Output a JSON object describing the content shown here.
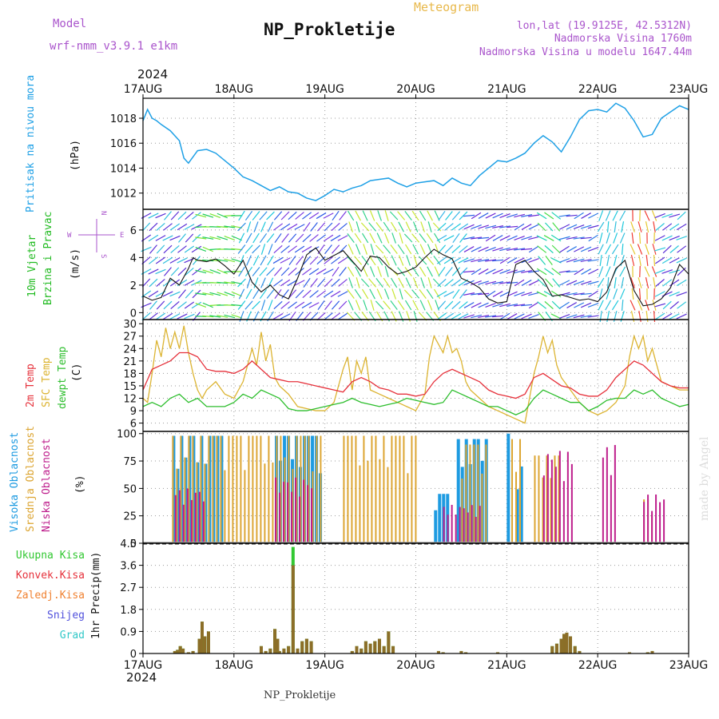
{
  "header": {
    "model_label": "Model",
    "model_name": "wrf-nmm_v3.9.1  e1km",
    "title": "NP_Prokletije",
    "subtitle": "Meteogram",
    "coords": "lon,lat (19.9125E, 42.5312N)",
    "elevation": "Nadmorska Visina 1760m",
    "model_elevation": "Nadmorska Visina u modelu 1647.44m",
    "year_top": "2024",
    "year_bottom": "2024",
    "footer": "NP_Prokletije",
    "watermark": "made by Angel"
  },
  "colors": {
    "pressure": "#1ea0e6",
    "tmp2m": "#e6323c",
    "sfc": "#dcb432",
    "dewp": "#2dbe2d",
    "high_cloud": "#1e9be1",
    "mid_cloud": "#dca532",
    "low_cloud": "#be1e8c",
    "precip_total": "#32c832",
    "precip_conv": "#8c6e28",
    "label_purple": "#aa55cc",
    "label_wind_green": "#22bb22"
  },
  "chart_data": [
    {
      "type": "line",
      "panel": "pressure",
      "ylabel_name": "Pritisak na nivou mora",
      "ylabel_unit": "(hPa)",
      "yticks": [
        1012,
        1014,
        1016,
        1018
      ],
      "ylim": [
        1010.7,
        1019.6
      ],
      "x_categories": [
        "17AUG",
        "18AUG",
        "19AUG",
        "20AUG",
        "21AUG",
        "22AUG",
        "23AUG"
      ],
      "grid": true,
      "series": [
        {
          "key": "pressure",
          "x": [
            0,
            0.05,
            0.1,
            0.15,
            0.2,
            0.3,
            0.4,
            0.45,
            0.5,
            0.6,
            0.7,
            0.8,
            0.9,
            1.0,
            1.1,
            1.2,
            1.3,
            1.4,
            1.5,
            1.6,
            1.7,
            1.8,
            1.9,
            2.0,
            2.1,
            2.2,
            2.3,
            2.4,
            2.5,
            2.6,
            2.7,
            2.8,
            2.9,
            3.0,
            3.1,
            3.2,
            3.3,
            3.4,
            3.5,
            3.6,
            3.7,
            3.8,
            3.9,
            4.0,
            4.1,
            4.2,
            4.3,
            4.4,
            4.5,
            4.6,
            4.7,
            4.8,
            4.9,
            5.0,
            5.1,
            5.2,
            5.3,
            5.4,
            5.5,
            5.6,
            5.7,
            5.8,
            5.9,
            6.0
          ],
          "values": [
            1017.8,
            1018.7,
            1018.0,
            1017.8,
            1017.5,
            1017.0,
            1016.2,
            1014.8,
            1014.4,
            1015.4,
            1015.5,
            1015.2,
            1014.6,
            1014.0,
            1013.3,
            1013.0,
            1012.6,
            1012.2,
            1012.5,
            1012.1,
            1012.0,
            1011.6,
            1011.4,
            1011.8,
            1012.3,
            1012.1,
            1012.4,
            1012.6,
            1013.0,
            1013.1,
            1013.2,
            1012.8,
            1012.5,
            1012.8,
            1012.9,
            1013.0,
            1012.6,
            1013.2,
            1012.8,
            1012.6,
            1013.4,
            1014.0,
            1014.6,
            1014.5,
            1014.8,
            1015.2,
            1016.0,
            1016.6,
            1016.1,
            1015.3,
            1016.5,
            1017.9,
            1018.6,
            1018.7,
            1018.5,
            1019.2,
            1018.8,
            1017.8,
            1016.5,
            1016.7,
            1018.0,
            1018.5,
            1019.0,
            1018.7
          ]
        }
      ]
    },
    {
      "type": "line",
      "panel": "wind",
      "ylabel_name": "10m Vjetar",
      "ylabel_name2": "Brzina i Pravac",
      "ylabel_unit": "(m/s)",
      "compass_labels": {
        "n": "N",
        "s": "S",
        "e": "E",
        "w": "W"
      },
      "yticks": [
        0,
        2,
        4,
        6
      ],
      "ylim": [
        -0.5,
        7.5
      ],
      "grid": true,
      "series": [
        {
          "key": "speed",
          "x": [
            0,
            0.1,
            0.2,
            0.3,
            0.4,
            0.5,
            0.55,
            0.6,
            0.7,
            0.8,
            0.9,
            1.0,
            1.1,
            1.2,
            1.3,
            1.4,
            1.5,
            1.6,
            1.7,
            1.8,
            1.9,
            2.0,
            2.2,
            2.4,
            2.5,
            2.6,
            2.7,
            2.8,
            2.9,
            3.0,
            3.1,
            3.2,
            3.3,
            3.4,
            3.5,
            3.6,
            3.7,
            3.8,
            3.9,
            4.0,
            4.1,
            4.2,
            4.3,
            4.4,
            4.5,
            4.6,
            4.7,
            4.8,
            4.9,
            5.0,
            5.1,
            5.2,
            5.3,
            5.4,
            5.5,
            5.6,
            5.7,
            5.8,
            5.9,
            6.0
          ],
          "values": [
            1.2,
            0.9,
            1.1,
            2.5,
            2.0,
            3.2,
            4.0,
            3.8,
            3.7,
            3.9,
            3.4,
            2.8,
            3.8,
            2.2,
            1.5,
            2.0,
            1.3,
            1.0,
            2.5,
            4.2,
            4.7,
            3.8,
            4.5,
            3.0,
            4.1,
            4.0,
            3.3,
            2.8,
            3.0,
            3.3,
            4.0,
            4.6,
            4.2,
            3.9,
            2.5,
            2.2,
            1.8,
            1.0,
            0.7,
            0.8,
            3.5,
            3.8,
            3.0,
            2.4,
            1.2,
            1.3,
            1.1,
            0.9,
            1.0,
            0.8,
            1.5,
            3.2,
            3.8,
            1.6,
            0.5,
            0.6,
            1.0,
            1.8,
            3.5,
            2.8
          ]
        }
      ]
    },
    {
      "type": "line",
      "panel": "temperature",
      "ylabel_lines": [
        "2m Temp",
        "SFC Temp",
        "dewpt Temp"
      ],
      "ylabel_unit": "(C)",
      "yticks": [
        6,
        9,
        12,
        15,
        18,
        21,
        24,
        27,
        30
      ],
      "ylim": [
        4,
        31
      ],
      "grid": true,
      "series": [
        {
          "key": "tmp2m",
          "x": [
            0,
            0.1,
            0.2,
            0.3,
            0.4,
            0.5,
            0.6,
            0.7,
            0.8,
            0.9,
            1.0,
            1.1,
            1.2,
            1.3,
            1.4,
            1.5,
            1.6,
            1.7,
            1.8,
            1.9,
            2.0,
            2.1,
            2.2,
            2.3,
            2.4,
            2.5,
            2.6,
            2.7,
            2.8,
            2.9,
            3.0,
            3.1,
            3.2,
            3.3,
            3.4,
            3.5,
            3.6,
            3.7,
            3.8,
            3.9,
            4.0,
            4.1,
            4.2,
            4.3,
            4.4,
            4.5,
            4.6,
            4.7,
            4.8,
            4.9,
            5.0,
            5.1,
            5.2,
            5.3,
            5.4,
            5.5,
            5.6,
            5.7,
            5.8,
            5.9,
            6.0
          ],
          "values": [
            14,
            19,
            20,
            21,
            23,
            23,
            22,
            19,
            18.5,
            18.5,
            18,
            19,
            21,
            19,
            17,
            16.5,
            16,
            16,
            15.5,
            15,
            14.5,
            14,
            13.5,
            16,
            17,
            16,
            14.5,
            14,
            13,
            13,
            12.5,
            13,
            16,
            18,
            19,
            18,
            17,
            16,
            14,
            13,
            12.5,
            12,
            13,
            17,
            18,
            16.5,
            15,
            14.5,
            13,
            12.5,
            12.5,
            14,
            17,
            19,
            21,
            20,
            18,
            16,
            15,
            14.5,
            14.5
          ]
        },
        {
          "key": "sfc",
          "x": [
            0,
            0.05,
            0.1,
            0.15,
            0.2,
            0.25,
            0.3,
            0.35,
            0.4,
            0.45,
            0.5,
            0.55,
            0.6,
            0.65,
            0.7,
            0.8,
            0.9,
            1.0,
            1.1,
            1.2,
            1.25,
            1.3,
            1.35,
            1.4,
            1.45,
            1.5,
            1.6,
            1.7,
            1.8,
            1.9,
            2.0,
            2.1,
            2.2,
            2.25,
            2.3,
            2.35,
            2.4,
            2.45,
            2.5,
            2.6,
            2.7,
            2.8,
            2.9,
            3.0,
            3.1,
            3.15,
            3.2,
            3.25,
            3.3,
            3.35,
            3.4,
            3.45,
            3.5,
            3.55,
            3.6,
            3.7,
            3.8,
            3.9,
            4.0,
            4.1,
            4.2,
            4.3,
            4.35,
            4.4,
            4.45,
            4.5,
            4.55,
            4.6,
            4.7,
            4.8,
            4.9,
            5.0,
            5.1,
            5.2,
            5.3,
            5.35,
            5.4,
            5.45,
            5.5,
            5.55,
            5.6,
            5.65,
            5.7,
            5.8,
            5.9,
            6.0
          ],
          "values": [
            12,
            11,
            18,
            26,
            22,
            29,
            24,
            28,
            24,
            29.5,
            23,
            18,
            14,
            12,
            14,
            16,
            13,
            12,
            16,
            24,
            20,
            28,
            21,
            25,
            17,
            15,
            13,
            10,
            9.5,
            9,
            9,
            11,
            19,
            22,
            14,
            21,
            18,
            22,
            14,
            13,
            12,
            11,
            10,
            9,
            13,
            22,
            27,
            25,
            23,
            27,
            23,
            24,
            21,
            16,
            14,
            12,
            10,
            9,
            8,
            7,
            6,
            18,
            22,
            27,
            23,
            26,
            20,
            17,
            14,
            11,
            9,
            8,
            9,
            11,
            15,
            22,
            27,
            24,
            27,
            21,
            24,
            20,
            16,
            15,
            14,
            14
          ]
        },
        {
          "key": "dewp",
          "x": [
            0,
            0.1,
            0.2,
            0.3,
            0.4,
            0.5,
            0.6,
            0.7,
            0.8,
            0.9,
            1.0,
            1.1,
            1.2,
            1.3,
            1.4,
            1.5,
            1.6,
            1.7,
            1.8,
            1.9,
            2.0,
            2.1,
            2.2,
            2.3,
            2.4,
            2.5,
            2.6,
            2.7,
            2.8,
            2.9,
            3.0,
            3.1,
            3.2,
            3.3,
            3.4,
            3.5,
            3.6,
            3.7,
            3.8,
            3.9,
            4.0,
            4.1,
            4.2,
            4.3,
            4.4,
            4.5,
            4.6,
            4.7,
            4.8,
            4.9,
            5.0,
            5.1,
            5.2,
            5.3,
            5.4,
            5.5,
            5.6,
            5.7,
            5.8,
            5.9,
            6.0
          ],
          "values": [
            10,
            11,
            10,
            12,
            13,
            11,
            12,
            10,
            10,
            10,
            11,
            13,
            12,
            14,
            13,
            12,
            9.5,
            9,
            9,
            9.5,
            10,
            10.5,
            11,
            12,
            11,
            10.5,
            10,
            10.5,
            11,
            12,
            11.5,
            11,
            10.5,
            11,
            14,
            13,
            12,
            11,
            10,
            10,
            9,
            8,
            9,
            12,
            14,
            13,
            12,
            11,
            11,
            9,
            10,
            11.5,
            12,
            12,
            14,
            13,
            14,
            12,
            11,
            10,
            10.5
          ]
        }
      ]
    },
    {
      "type": "bar",
      "panel": "clouds",
      "ylabel_lines": [
        "Visoka Oblacnost",
        "Srednja Oblacnost",
        "Niska Oblacnost"
      ],
      "ylabel_unit": "(%)",
      "yticks": [
        0,
        25,
        50,
        75,
        100
      ],
      "ylim": [
        0,
        102
      ],
      "grid": true,
      "series": [
        {
          "key": "high_cloud",
          "regions": [
            [
              0.32,
              0.85,
              98
            ],
            [
              1.45,
              1.95,
              98
            ],
            [
              3.2,
              3.35,
              45
            ],
            [
              3.45,
              3.8,
              95
            ],
            [
              4.0,
              4.02,
              100
            ],
            [
              4.1,
              4.15,
              70
            ]
          ]
        },
        {
          "key": "mid_cloud",
          "regions": [
            [
              0.32,
              1.95,
              98
            ],
            [
              2.2,
              3.0,
              98
            ],
            [
              3.5,
              3.8,
              90
            ],
            [
              4.05,
              4.15,
              95
            ],
            [
              4.3,
              4.6,
              80
            ],
            [
              5.5,
              5.6,
              40
            ]
          ]
        },
        {
          "key": "low_cloud",
          "regions": [
            [
              0.35,
              0.7,
              50
            ],
            [
              1.45,
              1.85,
              60
            ],
            [
              3.3,
              3.7,
              35
            ],
            [
              4.4,
              4.75,
              85
            ],
            [
              5.05,
              5.2,
              90
            ],
            [
              5.5,
              5.75,
              45
            ]
          ]
        }
      ]
    },
    {
      "type": "bar",
      "panel": "precip",
      "legend": [
        "Ukupna Kisa",
        "Konvek.Kisa",
        "Zaledj.Kisa",
        "Snijeg",
        "Grad"
      ],
      "legend_colors": [
        "#32c832",
        "#e6323c",
        "#f08232",
        "#5050dc",
        "#32c8c8"
      ],
      "ylabel_name": "1hr Precip",
      "ylabel_unit": "(mm)",
      "yticks": [
        0,
        0.9,
        1.8,
        2.7,
        3.6,
        4.5
      ],
      "ylim": [
        0,
        4.5
      ],
      "grid": true,
      "series": [
        {
          "key": "precip",
          "x": [
            0.35,
            0.38,
            0.41,
            0.44,
            0.5,
            0.55,
            0.62,
            0.65,
            0.68,
            0.72,
            1.3,
            1.35,
            1.4,
            1.45,
            1.48,
            1.5,
            1.55,
            1.6,
            1.65,
            1.7,
            1.75,
            1.8,
            1.85,
            2.3,
            2.35,
            2.4,
            2.45,
            2.5,
            2.55,
            2.6,
            2.65,
            2.7,
            2.75,
            3.25,
            3.3,
            3.5,
            3.55,
            3.9,
            4.5,
            4.55,
            4.6,
            4.63,
            4.66,
            4.7,
            4.75,
            4.8,
            5.35,
            5.55,
            5.6
          ],
          "total": [
            0.1,
            0.15,
            0.3,
            0.2,
            0.05,
            0.1,
            0.6,
            1.3,
            0.7,
            0.9,
            0.3,
            0.1,
            0.2,
            1.0,
            0.6,
            0.1,
            0.2,
            0.3,
            4.35,
            0.2,
            0.5,
            0.6,
            0.5,
            0.1,
            0.3,
            0.2,
            0.5,
            0.4,
            0.5,
            0.6,
            0.3,
            0.9,
            0.3,
            0.1,
            0.05,
            0.1,
            0.05,
            0.05,
            0.3,
            0.4,
            0.6,
            0.8,
            0.85,
            0.7,
            0.3,
            0.1,
            0.05,
            0.05,
            0.1
          ],
          "conv": [
            0.1,
            0.15,
            0.3,
            0.2,
            0.05,
            0.1,
            0.6,
            1.3,
            0.7,
            0.9,
            0.3,
            0.1,
            0.2,
            1.0,
            0.6,
            0.1,
            0.2,
            0.3,
            3.6,
            0.2,
            0.5,
            0.6,
            0.5,
            0.1,
            0.3,
            0.2,
            0.5,
            0.4,
            0.5,
            0.6,
            0.3,
            0.9,
            0.3,
            0.1,
            0.05,
            0.1,
            0.05,
            0.05,
            0.3,
            0.4,
            0.6,
            0.8,
            0.85,
            0.7,
            0.3,
            0.1,
            0.05,
            0.05,
            0.1
          ]
        }
      ]
    }
  ]
}
